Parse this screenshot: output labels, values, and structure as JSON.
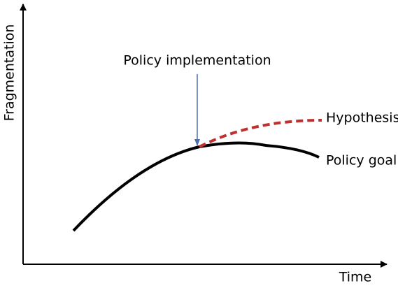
{
  "axes": {
    "y_label": "Fragmentation",
    "x_label": "Time"
  },
  "annotation": "Policy implementation",
  "curves": [
    {
      "label": "Hypothesis"
    },
    {
      "label": "Policy goal"
    }
  ]
}
